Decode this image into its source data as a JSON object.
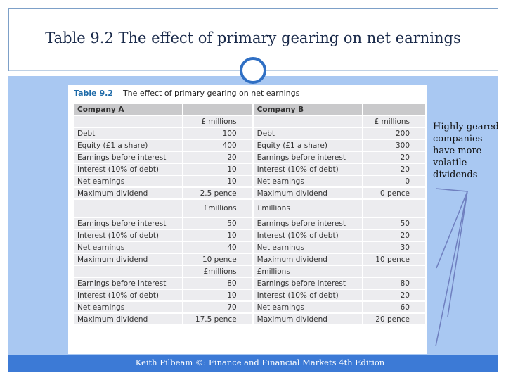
{
  "header": {
    "title": "Table 9.2 The effect of primary gearing on net earnings"
  },
  "table": {
    "number": "Table 9.2",
    "caption": "The effect of primary gearing on net earnings",
    "columns": [
      "Company A",
      null,
      "Company B",
      null
    ],
    "rows": [
      [
        null,
        "£ millions",
        null,
        "£ millions"
      ],
      [
        "Debt",
        100,
        "Debt",
        200
      ],
      [
        "Equity (£1 a share)",
        400,
        "Equity (£1 a share)",
        300
      ],
      [
        "Earnings before interest",
        20,
        "Earnings before interest",
        20
      ],
      [
        "Interest (10% of debt)",
        10,
        "Interest (10% of debt)",
        20
      ],
      [
        "Net earnings",
        10,
        "Net earnings",
        0
      ],
      [
        "Maximum dividend",
        "2.5 pence",
        "Maximum dividend",
        "0 pence"
      ],
      [
        null,
        "£millions",
        "£millions",
        null
      ],
      [
        "Earnings before interest",
        50,
        "Earnings before interest",
        50
      ],
      [
        "Interest (10% of debt)",
        10,
        "Interest (10% of debt)",
        20
      ],
      [
        "Net earnings",
        40,
        "Net earnings",
        30
      ],
      [
        "Maximum dividend",
        "10 pence",
        "Maximum dividend",
        "10 pence"
      ],
      [
        null,
        "£millions",
        "£millions",
        null
      ],
      [
        "Earnings before interest",
        80,
        "Earnings before interest",
        80
      ],
      [
        "Interest (10% of debt)",
        10,
        "Interest (10% of debt)",
        20
      ],
      [
        "Net earnings",
        70,
        "Net earnings",
        60
      ],
      [
        "Maximum dividend",
        "17.5 pence",
        "Maximum dividend",
        "20 pence"
      ]
    ]
  },
  "note": "Highly geared companies have more volatile dividends",
  "footer": "Keith Pilbeam ©: Finance and Financial Markets 4th Edition"
}
